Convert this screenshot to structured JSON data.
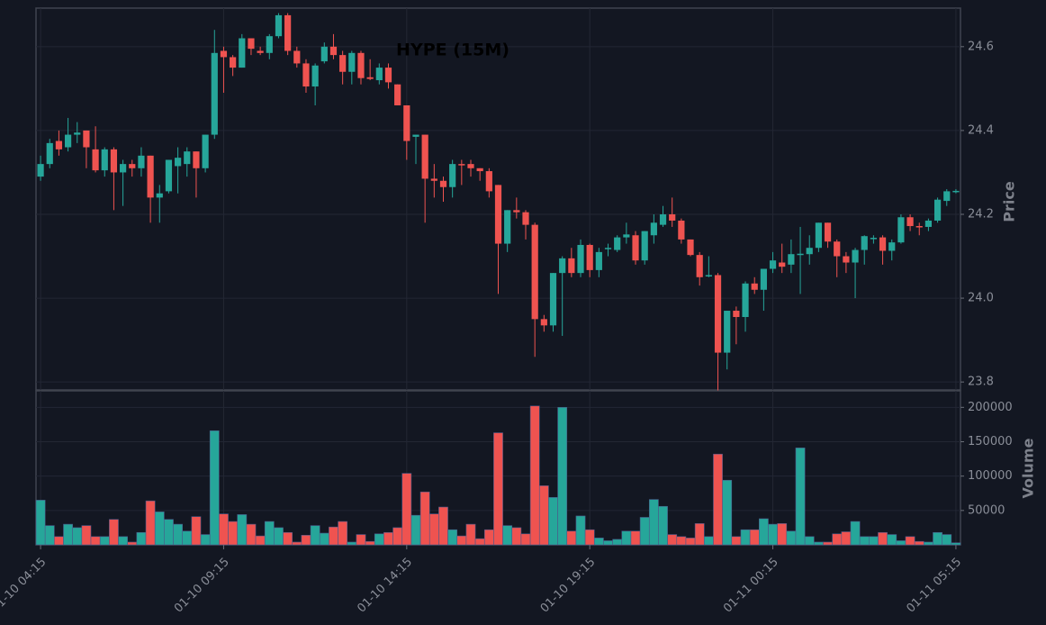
{
  "chart_data": [
    {
      "type": "candlestick",
      "title": "HYPE (15M)",
      "y_label": "Price",
      "up_color": "#26a69a",
      "down_color": "#ef5350",
      "grid": true,
      "ylim": [
        23.781,
        24.692
      ],
      "yticks": [
        23.8,
        {
          "value": 24,
          "label": "24.0"
        },
        24.2,
        24.4,
        24.6
      ],
      "open": [
        24.29,
        24.32,
        24.375,
        24.36,
        24.39,
        24.4,
        24.355,
        24.305,
        24.355,
        24.3,
        24.32,
        24.31,
        24.34,
        24.24,
        24.255,
        24.315,
        24.32,
        24.35,
        24.31,
        24.39,
        24.59,
        24.575,
        24.55,
        24.62,
        24.59,
        24.585,
        24.625,
        24.675,
        24.59,
        24.56,
        24.505,
        24.565,
        24.6,
        24.58,
        24.54,
        24.585,
        24.527,
        24.52,
        24.55,
        24.51,
        24.46,
        24.385,
        24.39,
        24.285,
        24.28,
        24.265,
        24.32,
        24.32,
        24.31,
        24.303,
        24.27,
        24.13,
        24.21,
        24.205,
        24.175,
        23.95,
        23.935,
        24.06,
        24.095,
        24.06,
        24.127,
        24.067,
        24.118,
        24.115,
        24.145,
        24.15,
        24.09,
        24.15,
        24.175,
        24.2,
        24.185,
        24.14,
        24.103,
        24.053,
        24.055,
        23.87,
        23.97,
        23.955,
        24.035,
        24.02,
        24.07,
        24.085,
        24.08,
        24.105,
        24.105,
        24.12,
        24.18,
        24.135,
        24.1,
        24.085,
        24.115,
        24.142,
        24.145,
        24.113,
        24.133,
        24.193,
        24.172,
        24.17,
        24.185,
        24.232,
        24.255
      ],
      "high": [
        24.34,
        24.38,
        24.4,
        24.43,
        24.42,
        24.4,
        24.41,
        24.36,
        24.36,
        24.33,
        24.33,
        24.36,
        24.34,
        24.27,
        24.33,
        24.36,
        24.36,
        24.35,
        24.39,
        24.64,
        24.6,
        24.58,
        24.63,
        24.62,
        24.6,
        24.63,
        24.68,
        24.68,
        24.6,
        24.57,
        24.56,
        24.61,
        24.63,
        24.59,
        24.59,
        24.59,
        24.57,
        24.56,
        24.56,
        24.51,
        24.46,
        24.39,
        24.39,
        24.32,
        24.29,
        24.33,
        24.33,
        24.33,
        24.31,
        24.31,
        24.27,
        24.21,
        24.24,
        24.21,
        24.18,
        23.96,
        24.06,
        24.1,
        24.12,
        24.14,
        24.13,
        24.12,
        24.13,
        24.15,
        24.18,
        24.16,
        24.16,
        24.2,
        24.22,
        24.24,
        24.19,
        24.14,
        24.11,
        24.1,
        24.06,
        23.97,
        23.98,
        24.04,
        24.05,
        24.07,
        24.11,
        24.13,
        24.14,
        24.17,
        24.15,
        24.18,
        24.18,
        24.14,
        24.11,
        24.12,
        24.15,
        24.15,
        24.15,
        24.14,
        24.2,
        24.2,
        24.18,
        24.19,
        24.24,
        24.26,
        24.26
      ],
      "low": [
        24.28,
        24.31,
        24.34,
        24.35,
        24.37,
        24.31,
        24.3,
        24.29,
        24.21,
        24.22,
        24.29,
        24.29,
        24.18,
        24.18,
        24.25,
        24.25,
        24.29,
        24.24,
        24.3,
        24.38,
        24.49,
        24.53,
        24.55,
        24.58,
        24.58,
        24.57,
        24.62,
        24.58,
        24.55,
        24.49,
        24.46,
        24.56,
        24.57,
        24.51,
        24.51,
        24.51,
        24.52,
        24.51,
        24.5,
        24.46,
        24.33,
        24.32,
        24.18,
        24.24,
        24.23,
        24.24,
        24.27,
        24.29,
        24.28,
        24.24,
        24.01,
        24.11,
        24.19,
        24.14,
        23.86,
        23.92,
        23.92,
        23.91,
        24.05,
        24.05,
        24.05,
        24.05,
        24.1,
        24.11,
        24.13,
        24.08,
        24.08,
        24.13,
        24.17,
        24.17,
        24.13,
        24.1,
        24.03,
        24.05,
        23.78,
        23.83,
        23.89,
        23.92,
        24.01,
        23.97,
        24.06,
        24.06,
        24.06,
        24.01,
        24.08,
        24.11,
        24.12,
        24.05,
        24.06,
        24.0,
        24.08,
        24.13,
        24.08,
        24.09,
        24.13,
        24.16,
        24.15,
        24.16,
        24.18,
        24.22,
        24.25
      ],
      "close": [
        24.32,
        24.37,
        24.355,
        24.39,
        24.395,
        24.36,
        24.305,
        24.355,
        24.3,
        24.32,
        24.31,
        24.34,
        24.24,
        24.25,
        24.33,
        24.335,
        24.35,
        24.31,
        24.39,
        24.585,
        24.575,
        24.55,
        24.62,
        24.595,
        24.585,
        24.625,
        24.675,
        24.59,
        24.56,
        24.505,
        24.555,
        24.6,
        24.58,
        24.54,
        24.585,
        24.525,
        24.523,
        24.55,
        24.515,
        24.46,
        24.375,
        24.39,
        24.285,
        24.28,
        24.265,
        24.32,
        24.318,
        24.31,
        24.303,
        24.255,
        24.13,
        24.21,
        24.205,
        24.175,
        23.95,
        23.935,
        24.06,
        24.095,
        24.06,
        24.127,
        24.067,
        24.11,
        24.12,
        24.145,
        24.152,
        24.09,
        24.16,
        24.18,
        24.2,
        24.185,
        24.14,
        24.103,
        24.05,
        24.055,
        23.87,
        23.97,
        23.955,
        24.035,
        24.02,
        24.07,
        24.09,
        24.075,
        24.105,
        24.106,
        24.12,
        24.18,
        24.135,
        24.1,
        24.085,
        24.115,
        24.148,
        24.144,
        24.113,
        24.133,
        24.193,
        24.172,
        24.17,
        24.185,
        24.235,
        24.255,
        24.256
      ]
    },
    {
      "type": "bar",
      "y_label": "Volume",
      "grid": true,
      "ylim": [
        0,
        224000
      ],
      "yticks": [
        50000,
        100000,
        150000,
        200000
      ],
      "categories": [
        "01-10 04:15",
        null,
        null,
        null,
        null,
        null,
        null,
        null,
        null,
        null,
        null,
        null,
        null,
        null,
        null,
        null,
        null,
        null,
        null,
        null,
        "01-10 09:15",
        null,
        null,
        null,
        null,
        null,
        null,
        null,
        null,
        null,
        null,
        null,
        null,
        null,
        null,
        null,
        null,
        null,
        null,
        null,
        "01-10 14:15",
        null,
        null,
        null,
        null,
        null,
        null,
        null,
        null,
        null,
        null,
        null,
        null,
        null,
        null,
        null,
        null,
        null,
        null,
        null,
        "01-10 19:15",
        null,
        null,
        null,
        null,
        null,
        null,
        null,
        null,
        null,
        null,
        null,
        null,
        null,
        null,
        null,
        null,
        null,
        null,
        null,
        "01-11 00:15",
        null,
        null,
        null,
        null,
        null,
        null,
        null,
        null,
        null,
        null,
        null,
        null,
        null,
        null,
        null,
        null,
        null,
        null,
        null,
        "01-11 05:15"
      ],
      "values": [
        65000,
        28000,
        12000,
        30000,
        25000,
        28000,
        12000,
        12000,
        37000,
        12000,
        4000,
        18000,
        64000,
        48000,
        37000,
        30000,
        20000,
        41000,
        15000,
        166000,
        45000,
        34000,
        44000,
        30000,
        13000,
        34000,
        25000,
        18000,
        4000,
        14000,
        28000,
        17000,
        26000,
        34000,
        4000,
        15000,
        5000,
        16000,
        18000,
        25000,
        104000,
        43000,
        77000,
        45000,
        55000,
        22000,
        13000,
        30000,
        9000,
        22000,
        163000,
        28000,
        25000,
        16000,
        202000,
        86000,
        69000,
        200000,
        20000,
        42000,
        22000,
        10000,
        6000,
        8000,
        20000,
        20000,
        40000,
        66000,
        56000,
        15000,
        12000,
        10000,
        31000,
        12000,
        132000,
        94000,
        12000,
        22000,
        22000,
        38000,
        30000,
        31000,
        20000,
        141000,
        12000,
        4000,
        4000,
        16000,
        19000,
        34000,
        12000,
        12000,
        18000,
        15000,
        6000,
        12000,
        5000,
        4000,
        18000,
        15000,
        3000
      ]
    }
  ]
}
